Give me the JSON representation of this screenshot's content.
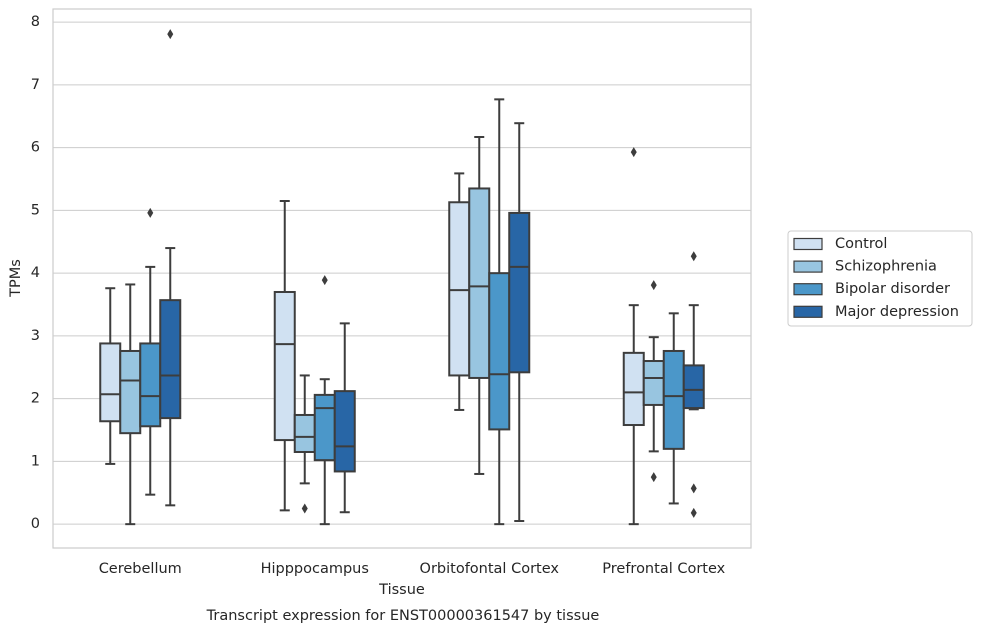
{
  "chart_data": {
    "type": "box",
    "title": "Transcript expression for ENST00000361547 by tissue",
    "xlabel": "Tissue",
    "ylabel": "TPMs",
    "categories": [
      "Cerebellum",
      "Hipppocampus",
      "Orbitofontal Cortex",
      "Prefrontal Cortex"
    ],
    "ylim": [
      -0.38,
      8.21
    ],
    "yticks": [
      0,
      1,
      2,
      3,
      4,
      5,
      6,
      7,
      8
    ],
    "grid": true,
    "legend": "right",
    "series": [
      {
        "name": "Control",
        "color": "#d0e1f2",
        "boxes": [
          {
            "whislo": 0.96,
            "q1": 1.64,
            "med": 2.07,
            "q3": 2.88,
            "whishi": 3.76,
            "fliers": []
          },
          {
            "whislo": 0.22,
            "q1": 1.34,
            "med": 2.87,
            "q3": 3.7,
            "whishi": 5.15,
            "fliers": []
          },
          {
            "whislo": 1.82,
            "q1": 2.37,
            "med": 3.73,
            "q3": 5.13,
            "whishi": 5.59,
            "fliers": []
          },
          {
            "whislo": 0,
            "q1": 1.58,
            "med": 2.1,
            "q3": 2.73,
            "whishi": 3.49,
            "fliers": [
              5.93
            ]
          }
        ]
      },
      {
        "name": "Schizophrenia",
        "color": "#98c5e0",
        "boxes": [
          {
            "whislo": 0,
            "q1": 1.45,
            "med": 2.29,
            "q3": 2.76,
            "whishi": 3.82,
            "fliers": []
          },
          {
            "whislo": 0.65,
            "q1": 1.15,
            "med": 1.39,
            "q3": 1.74,
            "whishi": 2.37,
            "fliers": [
              0.25
            ]
          },
          {
            "whislo": 0.8,
            "q1": 2.33,
            "med": 3.79,
            "q3": 5.35,
            "whishi": 6.17,
            "fliers": []
          },
          {
            "whislo": 1.16,
            "q1": 1.9,
            "med": 2.33,
            "q3": 2.6,
            "whishi": 2.98,
            "fliers": [
              3.81,
              0.75
            ]
          }
        ]
      },
      {
        "name": "Bipolar disorder",
        "color": "#4b97c9",
        "boxes": [
          {
            "whislo": 0.47,
            "q1": 1.56,
            "med": 2.04,
            "q3": 2.88,
            "whishi": 4.1,
            "fliers": [
              4.96
            ]
          },
          {
            "whislo": 0,
            "q1": 1.02,
            "med": 1.85,
            "q3": 2.06,
            "whishi": 2.31,
            "fliers": [
              3.89
            ]
          },
          {
            "whislo": 0,
            "q1": 1.51,
            "med": 2.39,
            "q3": 4.0,
            "whishi": 6.77,
            "fliers": []
          },
          {
            "whislo": 0.33,
            "q1": 1.2,
            "med": 2.04,
            "q3": 2.76,
            "whishi": 3.36,
            "fliers": []
          }
        ]
      },
      {
        "name": "Major depression",
        "color": "#2866a6",
        "boxes": [
          {
            "whislo": 0.3,
            "q1": 1.69,
            "med": 2.37,
            "q3": 3.57,
            "whishi": 4.4,
            "fliers": [
              7.81
            ]
          },
          {
            "whislo": 0.19,
            "q1": 0.84,
            "med": 1.24,
            "q3": 2.12,
            "whishi": 3.2,
            "fliers": []
          },
          {
            "whislo": 0.05,
            "q1": 2.42,
            "med": 4.1,
            "q3": 4.96,
            "whishi": 6.39,
            "fliers": []
          },
          {
            "whislo": 1.83,
            "q1": 1.85,
            "med": 2.14,
            "q3": 2.53,
            "whishi": 3.49,
            "fliers": [
              4.27,
              0.57,
              0.18
            ]
          }
        ]
      }
    ]
  }
}
